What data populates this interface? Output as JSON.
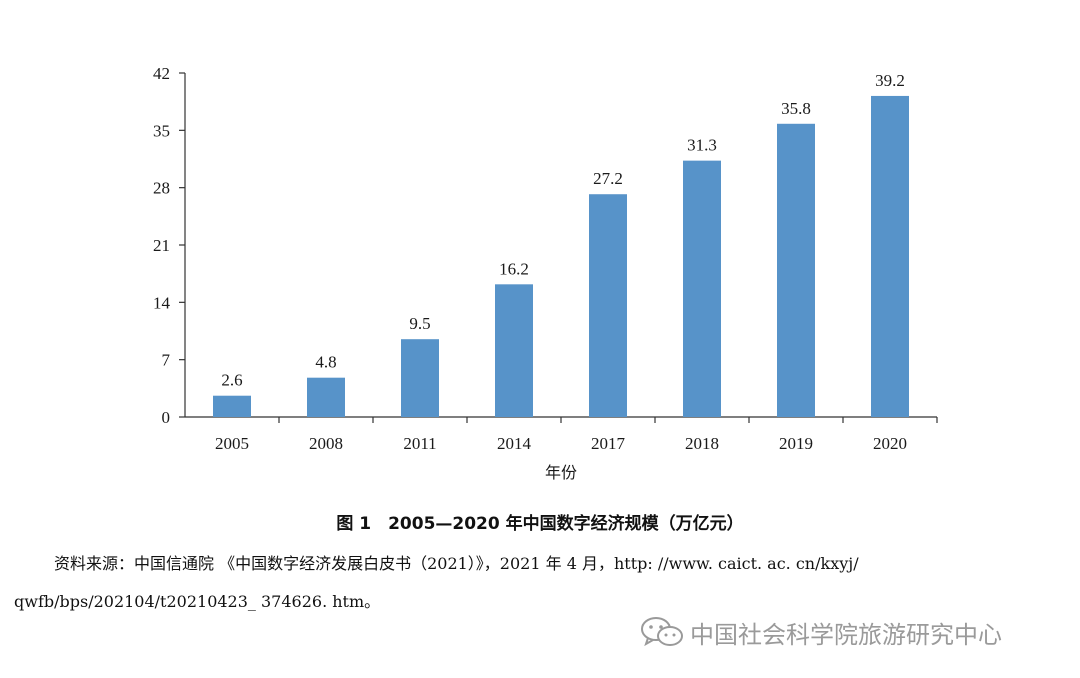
{
  "chart_data": {
    "type": "bar",
    "categories": [
      "2005",
      "2008",
      "2011",
      "2014",
      "2017",
      "2018",
      "2019",
      "2020"
    ],
    "values": [
      2.6,
      4.8,
      9.5,
      16.2,
      27.2,
      31.3,
      35.8,
      39.2
    ],
    "value_labels": [
      "2.6",
      "4.8",
      "9.5",
      "16.2",
      "27.2",
      "31.3",
      "35.8",
      "39.2"
    ],
    "xlabel": "年份",
    "ylabel": "",
    "ylim": [
      0,
      42
    ],
    "yticks": [
      0,
      7,
      14,
      21,
      28,
      35,
      42
    ],
    "ytick_labels": [
      "0",
      "7",
      "14",
      "21",
      "28",
      "35",
      "42"
    ],
    "grid": false,
    "bar_color": "#5793c9"
  },
  "caption": "图 1　2005—2020 年中国数字经济规模（万亿元）",
  "source_line1": "资料来源：中国信通院 《中国数字经济发展白皮书（2021）》，2021 年 4 月，http: //www. caict. ac. cn/kxyj/",
  "source_line2": "qwfb/bps/202104/t20210423_ 374626. htm。",
  "watermark": {
    "icon": "wechat-icon",
    "text": "中国社会科学院旅游研究中心"
  }
}
